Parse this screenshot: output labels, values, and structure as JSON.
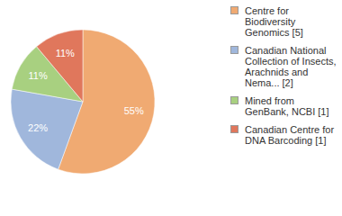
{
  "chart_data": {
    "type": "pie",
    "categories": [
      "Centre for Biodiversity Genomics [5]",
      "Canadian National Collection of Insects, Arachnids and Nema... [2]",
      "Mined from GenBank, NCBI [1]",
      "Canadian Centre for DNA Barcoding [1]"
    ],
    "values": [
      55,
      22,
      11,
      11
    ],
    "value_labels": [
      "55%",
      "22%",
      "11%",
      "11%"
    ],
    "colors": [
      "#f0aa72",
      "#a0b7dc",
      "#a8d080",
      "#e0775c"
    ],
    "data_labels": true,
    "legend": "right"
  }
}
